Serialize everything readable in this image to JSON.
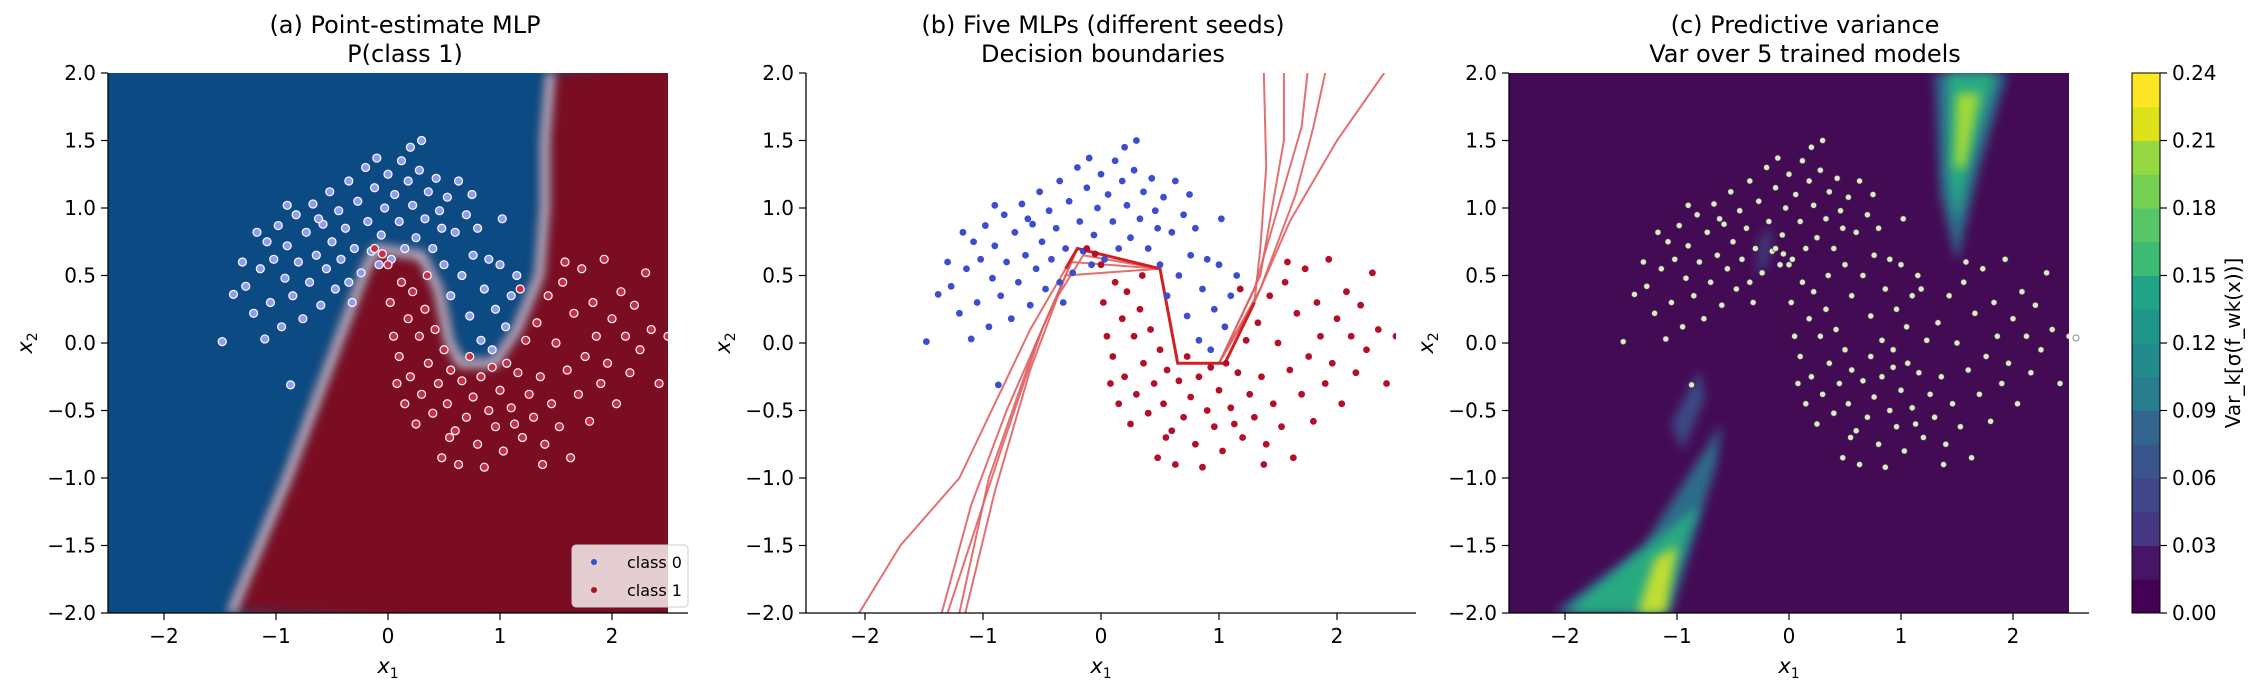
{
  "figure": {
    "panels": [
      {
        "title_line1": "(a) Point-estimate MLP",
        "title_line2": "P(class 1)",
        "xlabel": "x",
        "xlabel_sub": "1",
        "ylabel": "x",
        "ylabel_sub": "2"
      },
      {
        "title_line1": "(b) Five MLPs (different seeds)",
        "title_line2": "Decision boundaries",
        "xlabel": "x",
        "xlabel_sub": "1",
        "ylabel": "x",
        "ylabel_sub": "2"
      },
      {
        "title_line1": "(c) Predictive variance",
        "title_line2": "Var over 5 trained models",
        "xlabel": "x",
        "xlabel_sub": "1",
        "ylabel": "x",
        "ylabel_sub": "2"
      }
    ],
    "legend": {
      "class0": "class 0",
      "class1": "class 1"
    },
    "colorbar_label": "Var_k[σ(f_wk(x))]",
    "colors": {
      "class0": "#3a4fcf",
      "class1": "#b40f2a",
      "p_low": "#0b4a82",
      "p_high": "#7a0823",
      "var_low": "#440b55",
      "var_mid": "#2f9a8a",
      "var_high": "#c8e02a",
      "boundary": "#e06060",
      "boundary_bold": "#d22020"
    }
  },
  "chart_data": [
    {
      "type": "heatmap",
      "title": "(a) Point-estimate MLP P(class 1)",
      "xlabel": "x1",
      "ylabel": "x2",
      "xlim": [
        -2.5,
        2.5
      ],
      "ylim": [
        -2.0,
        2.0
      ],
      "xticks": [
        -2,
        -1,
        0,
        1,
        2
      ],
      "yticks": [
        -2.0,
        -1.5,
        -1.0,
        -0.5,
        0.0,
        0.5,
        1.0,
        1.5,
        2.0
      ],
      "xtick_labels": [
        "−2",
        "−1",
        "0",
        "1",
        "2"
      ],
      "ytick_labels": [
        "−2.0",
        "−1.5",
        "−1.0",
        "−0.5",
        "0.0",
        "0.5",
        "1.0",
        "1.5",
        "2.0"
      ],
      "decision_boundary": [
        [
          -1.4,
          -2.0
        ],
        [
          -0.9,
          -1.0
        ],
        [
          -0.45,
          0.0
        ],
        [
          -0.2,
          0.55
        ],
        [
          -0.1,
          0.7
        ],
        [
          0.3,
          0.65
        ],
        [
          0.45,
          0.4
        ],
        [
          0.55,
          0.0
        ],
        [
          0.65,
          -0.15
        ],
        [
          0.95,
          -0.15
        ],
        [
          1.15,
          0.1
        ],
        [
          1.35,
          0.5
        ],
        [
          1.4,
          1.0
        ],
        [
          1.4,
          1.5
        ],
        [
          1.45,
          2.0
        ]
      ],
      "legend": [
        "class 0",
        "class 1"
      ],
      "legend_position": "lower-right",
      "series": [
        {
          "name": "class 0",
          "dataset": "class0"
        },
        {
          "name": "class 1",
          "dataset": "class1"
        }
      ]
    },
    {
      "type": "line",
      "title": "(b) Five MLPs (different seeds) Decision boundaries",
      "xlabel": "x1",
      "ylabel": "x2",
      "xlim": [
        -2.5,
        2.5
      ],
      "ylim": [
        -2.0,
        2.0
      ],
      "xticks": [
        -2,
        -1,
        0,
        1,
        2
      ],
      "yticks": [
        -2.0,
        -1.5,
        -1.0,
        -0.5,
        0.0,
        0.5,
        1.0,
        1.5,
        2.0
      ],
      "xtick_labels": [
        "−2",
        "−1",
        "0",
        "1",
        "2"
      ],
      "ytick_labels": [
        "−2.0",
        "−1.5",
        "−1.0",
        "−0.5",
        "0.0",
        "0.5",
        "1.0",
        "1.5",
        "2.0"
      ],
      "boundaries": [
        [
          [
            -2.05,
            -2.0
          ],
          [
            -1.7,
            -1.5
          ],
          [
            -1.2,
            -1.0
          ],
          [
            -0.6,
            0.1
          ],
          [
            -0.2,
            0.7
          ],
          [
            0.5,
            0.55
          ],
          [
            0.65,
            -0.15
          ],
          [
            1.05,
            -0.15
          ],
          [
            1.3,
            0.3
          ],
          [
            1.6,
            0.9
          ],
          [
            2.0,
            1.5
          ],
          [
            2.4,
            2.0
          ]
        ],
        [
          [
            -1.35,
            -2.0
          ],
          [
            -1.1,
            -1.2
          ],
          [
            -0.8,
            -0.5
          ],
          [
            -0.4,
            0.3
          ],
          [
            -0.15,
            0.65
          ],
          [
            0.5,
            0.55
          ],
          [
            0.65,
            -0.15
          ],
          [
            1.0,
            -0.15
          ],
          [
            1.3,
            0.3
          ],
          [
            1.35,
            0.7
          ],
          [
            1.4,
            1.3
          ],
          [
            1.38,
            2.0
          ]
        ],
        [
          [
            -1.2,
            -2.0
          ],
          [
            -0.95,
            -1.0
          ],
          [
            -0.55,
            0.0
          ],
          [
            -0.25,
            0.6
          ],
          [
            0.5,
            0.55
          ],
          [
            0.65,
            -0.15
          ],
          [
            1.0,
            -0.15
          ],
          [
            1.35,
            0.5
          ],
          [
            1.45,
            1.0
          ],
          [
            1.55,
            1.5
          ],
          [
            1.55,
            2.0
          ]
        ],
        [
          [
            -1.15,
            -2.0
          ],
          [
            -0.9,
            -1.1
          ],
          [
            -0.6,
            -0.2
          ],
          [
            -0.3,
            0.5
          ],
          [
            0.5,
            0.55
          ],
          [
            0.65,
            -0.15
          ],
          [
            1.0,
            -0.15
          ],
          [
            1.3,
            0.4
          ],
          [
            1.5,
            1.0
          ],
          [
            1.7,
            1.6
          ],
          [
            1.75,
            2.0
          ]
        ],
        [
          [
            -1.3,
            -2.0
          ],
          [
            -0.85,
            -0.8
          ],
          [
            -0.5,
            0.1
          ],
          [
            -0.2,
            0.7
          ],
          [
            0.5,
            0.55
          ],
          [
            0.65,
            -0.15
          ],
          [
            1.0,
            -0.15
          ],
          [
            1.35,
            0.4
          ],
          [
            1.65,
            1.1
          ],
          [
            1.8,
            1.6
          ],
          [
            1.9,
            2.0
          ]
        ]
      ],
      "series": [
        {
          "name": "class 0",
          "dataset": "class0"
        },
        {
          "name": "class 1",
          "dataset": "class1"
        }
      ]
    },
    {
      "type": "heatmap",
      "title": "(c) Predictive variance Var over 5 trained models",
      "xlabel": "x1",
      "ylabel": "x2",
      "xlim": [
        -2.5,
        2.5
      ],
      "ylim": [
        -2.0,
        2.0
      ],
      "xticks": [
        -2,
        -1,
        0,
        1,
        2
      ],
      "yticks": [
        -2.0,
        -1.5,
        -1.0,
        -0.5,
        0.0,
        0.5,
        1.0,
        1.5,
        2.0
      ],
      "xtick_labels": [
        "−2",
        "−1",
        "0",
        "1",
        "2"
      ],
      "ytick_labels": [
        "−2.0",
        "−1.5",
        "−1.0",
        "−0.5",
        "0.0",
        "0.5",
        "1.0",
        "1.5",
        "2.0"
      ],
      "colorbar": {
        "range": [
          0.0,
          0.24
        ],
        "ticks": [
          0.0,
          0.03,
          0.06,
          0.09,
          0.12,
          0.15,
          0.18,
          0.21,
          0.24
        ],
        "tick_labels": [
          "0.00",
          "0.03",
          "0.06",
          "0.09",
          "0.12",
          "0.15",
          "0.18",
          "0.21",
          "0.24"
        ],
        "levels": 16,
        "label": "Var_k[σ(f_wk(x))]"
      },
      "high_variance_regions": [
        {
          "center": [
            1.5,
            1.5
          ],
          "peak": 0.21
        },
        {
          "center": [
            -1.25,
            -1.7
          ],
          "peak": 0.24
        },
        {
          "center": [
            -1.0,
            -0.6
          ],
          "peak": 0.09
        }
      ],
      "series": [
        {
          "name": "class 0",
          "dataset": "class0"
        },
        {
          "name": "class 1",
          "dataset": "class1"
        }
      ]
    }
  ],
  "datasets": {
    "class0": [
      [
        -1.48,
        0.01
      ],
      [
        -1.38,
        0.36
      ],
      [
        -1.27,
        0.42
      ],
      [
        -1.2,
        0.22
      ],
      [
        -1.17,
        0.82
      ],
      [
        -1.14,
        0.55
      ],
      [
        -1.1,
        0.03
      ],
      [
        -1.05,
        0.3
      ],
      [
        -1.02,
        0.62
      ],
      [
        -0.98,
        0.87
      ],
      [
        -0.95,
        0.12
      ],
      [
        -0.92,
        0.48
      ],
      [
        -0.9,
        0.72
      ],
      [
        -0.87,
        -0.31
      ],
      [
        -0.85,
        0.35
      ],
      [
        -0.82,
        0.95
      ],
      [
        -0.8,
        0.6
      ],
      [
        -0.76,
        0.18
      ],
      [
        -0.73,
        0.82
      ],
      [
        -0.7,
        0.45
      ],
      [
        -0.67,
        1.03
      ],
      [
        -0.64,
        0.65
      ],
      [
        -0.6,
        0.28
      ],
      [
        -0.58,
        0.88
      ],
      [
        -0.55,
        0.55
      ],
      [
        -0.52,
        1.12
      ],
      [
        -0.5,
        0.75
      ],
      [
        -0.47,
        0.4
      ],
      [
        -0.44,
        0.98
      ],
      [
        -0.42,
        0.62
      ],
      [
        -0.38,
        0.85
      ],
      [
        -0.35,
        1.2
      ],
      [
        -0.32,
        0.3
      ],
      [
        -0.3,
        0.7
      ],
      [
        -0.27,
        1.05
      ],
      [
        -0.24,
        0.52
      ],
      [
        -0.2,
        1.3
      ],
      [
        -0.18,
        0.9
      ],
      [
        -0.15,
        0.68
      ],
      [
        -0.12,
        1.15
      ],
      [
        -0.1,
        1.37
      ],
      [
        -0.06,
        0.8
      ],
      [
        -0.03,
        1.0
      ],
      [
        0.0,
        1.25
      ],
      [
        0.03,
        0.62
      ],
      [
        0.06,
        1.1
      ],
      [
        0.1,
        0.9
      ],
      [
        0.12,
        1.35
      ],
      [
        0.15,
        0.7
      ],
      [
        0.18,
        1.2
      ],
      [
        0.22,
        1.02
      ],
      [
        0.25,
        0.78
      ],
      [
        0.28,
        1.28
      ],
      [
        0.3,
        1.5
      ],
      [
        0.33,
        0.92
      ],
      [
        0.36,
        1.12
      ],
      [
        0.4,
        0.7
      ],
      [
        0.43,
        1.22
      ],
      [
        0.46,
        0.98
      ],
      [
        0.5,
        0.58
      ],
      [
        0.53,
        1.08
      ],
      [
        0.56,
        0.35
      ],
      [
        0.6,
        0.82
      ],
      [
        0.63,
        1.2
      ],
      [
        0.66,
        0.5
      ],
      [
        0.7,
        0.95
      ],
      [
        0.73,
        0.2
      ],
      [
        0.76,
        0.65
      ],
      [
        0.8,
        0.85
      ],
      [
        0.83,
        0.02
      ],
      [
        0.86,
        0.4
      ],
      [
        0.9,
        0.62
      ],
      [
        0.93,
        -0.05
      ],
      [
        0.96,
        0.25
      ],
      [
        1.0,
        0.58
      ],
      [
        1.05,
        0.12
      ],
      [
        1.1,
        0.35
      ],
      [
        1.15,
        0.5
      ],
      [
        -1.3,
        0.6
      ],
      [
        -0.62,
        0.92
      ],
      [
        -0.08,
        0.58
      ],
      [
        0.48,
        0.85
      ],
      [
        1.02,
        0.92
      ],
      [
        -0.9,
        1.02
      ],
      [
        0.2,
        1.45
      ],
      [
        -1.08,
        0.75
      ],
      [
        -0.35,
        0.45
      ],
      [
        0.75,
        1.1
      ]
    ],
    "class1": [
      [
        -0.12,
        0.7
      ],
      [
        -0.05,
        0.66
      ],
      [
        0.0,
        0.58
      ],
      [
        0.02,
        0.3
      ],
      [
        0.05,
        0.05
      ],
      [
        0.08,
        -0.3
      ],
      [
        0.1,
        -0.1
      ],
      [
        0.12,
        0.45
      ],
      [
        0.15,
        -0.45
      ],
      [
        0.18,
        0.18
      ],
      [
        0.2,
        -0.25
      ],
      [
        0.22,
        0.38
      ],
      [
        0.25,
        -0.6
      ],
      [
        0.28,
        0.05
      ],
      [
        0.3,
        -0.38
      ],
      [
        0.33,
        0.25
      ],
      [
        0.36,
        -0.15
      ],
      [
        0.4,
        -0.52
      ],
      [
        0.42,
        0.1
      ],
      [
        0.45,
        -0.3
      ],
      [
        0.48,
        -0.85
      ],
      [
        0.5,
        -0.05
      ],
      [
        0.53,
        -0.45
      ],
      [
        0.56,
        -0.2
      ],
      [
        0.6,
        -0.65
      ],
      [
        0.63,
        -0.9
      ],
      [
        0.66,
        -0.28
      ],
      [
        0.7,
        -0.55
      ],
      [
        0.73,
        -0.1
      ],
      [
        0.76,
        -0.4
      ],
      [
        0.8,
        -0.75
      ],
      [
        0.83,
        -0.25
      ],
      [
        0.86,
        -0.92
      ],
      [
        0.9,
        -0.5
      ],
      [
        0.93,
        -0.18
      ],
      [
        0.96,
        -0.62
      ],
      [
        1.0,
        -0.35
      ],
      [
        1.03,
        -0.8
      ],
      [
        1.06,
        -0.15
      ],
      [
        1.1,
        -0.48
      ],
      [
        1.13,
        -0.6
      ],
      [
        1.16,
        -0.22
      ],
      [
        1.2,
        -0.7
      ],
      [
        1.23,
        0.02
      ],
      [
        1.26,
        -0.38
      ],
      [
        1.3,
        -0.55
      ],
      [
        1.33,
        0.15
      ],
      [
        1.36,
        -0.25
      ],
      [
        1.4,
        -0.75
      ],
      [
        1.43,
        0.35
      ],
      [
        1.46,
        -0.45
      ],
      [
        1.5,
        0.0
      ],
      [
        1.53,
        -0.62
      ],
      [
        1.56,
        0.45
      ],
      [
        1.6,
        -0.2
      ],
      [
        1.63,
        -0.85
      ],
      [
        1.66,
        0.22
      ],
      [
        1.7,
        -0.38
      ],
      [
        1.73,
        0.55
      ],
      [
        1.76,
        -0.1
      ],
      [
        1.8,
        -0.58
      ],
      [
        1.83,
        0.3
      ],
      [
        1.86,
        0.05
      ],
      [
        1.9,
        -0.3
      ],
      [
        1.93,
        0.62
      ],
      [
        1.96,
        -0.15
      ],
      [
        2.0,
        0.18
      ],
      [
        2.04,
        -0.45
      ],
      [
        2.08,
        0.38
      ],
      [
        2.12,
        0.05
      ],
      [
        2.16,
        -0.22
      ],
      [
        2.2,
        0.28
      ],
      [
        2.25,
        -0.05
      ],
      [
        2.3,
        0.52
      ],
      [
        2.35,
        0.1
      ],
      [
        2.5,
        0.05
      ],
      [
        0.35,
        0.5
      ],
      [
        1.18,
        0.4
      ],
      [
        1.58,
        0.6
      ],
      [
        0.55,
        -0.7
      ],
      [
        1.38,
        -0.9
      ],
      [
        2.42,
        -0.3
      ]
    ]
  }
}
